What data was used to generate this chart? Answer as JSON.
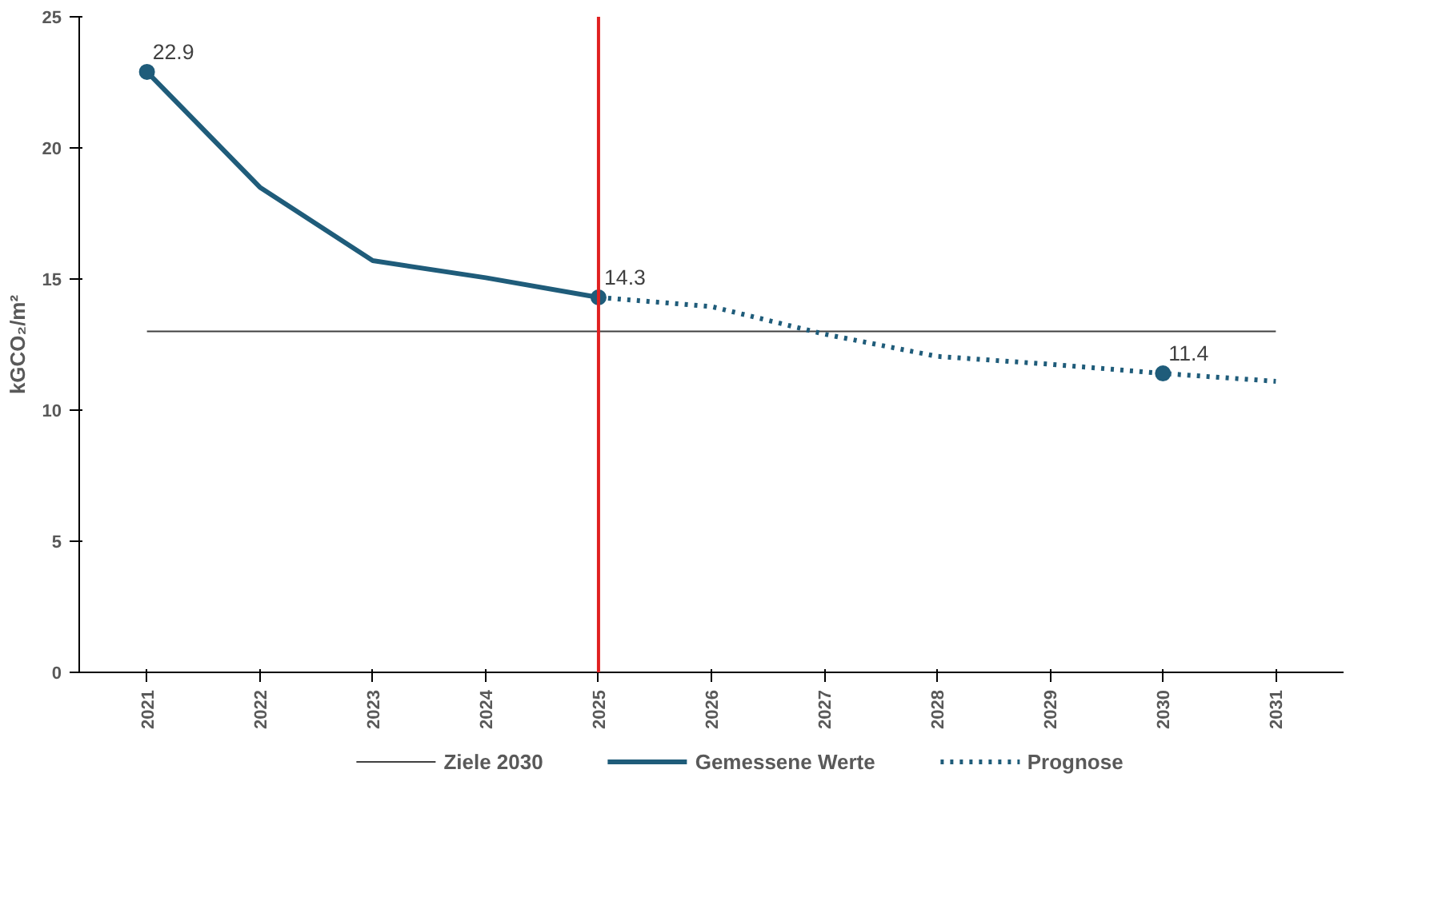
{
  "chart_data": {
    "type": "line",
    "ylabel": "kGCO₂/m²",
    "categories": [
      "2021",
      "2022",
      "2023",
      "2024",
      "2025",
      "2026",
      "2027",
      "2028",
      "2029",
      "2030",
      "2031"
    ],
    "ylim": [
      0,
      25
    ],
    "yticks": [
      0,
      5,
      10,
      15,
      20,
      25
    ],
    "grid": false,
    "legend": "bottom",
    "series": [
      {
        "name": "Ziele 2030",
        "color": "#404040",
        "line_style": "solid",
        "values": [
          13,
          13,
          13,
          13,
          13,
          13,
          13,
          13,
          13,
          13,
          13
        ]
      },
      {
        "name": "Gemessene Werte",
        "color": "#1f5c7a",
        "line_style": "solid",
        "values": [
          22.9,
          18.5,
          15.7,
          15.05,
          14.3,
          null,
          null,
          null,
          null,
          null,
          null
        ],
        "value_labels": [
          "22.9",
          null,
          null,
          null,
          "14.3",
          null,
          null,
          null,
          null,
          null,
          null
        ]
      },
      {
        "name": "Prognose",
        "color": "#1f5c7a",
        "line_style": "dotted",
        "values": [
          null,
          null,
          null,
          null,
          14.3,
          13.95,
          12.9,
          12.05,
          11.75,
          11.4,
          11.1
        ],
        "value_labels": [
          null,
          null,
          null,
          null,
          null,
          null,
          null,
          null,
          null,
          "11.4",
          null
        ]
      }
    ],
    "ref_lines": [
      {
        "axis": "x",
        "value": "2025",
        "color": "#e02020"
      }
    ]
  }
}
